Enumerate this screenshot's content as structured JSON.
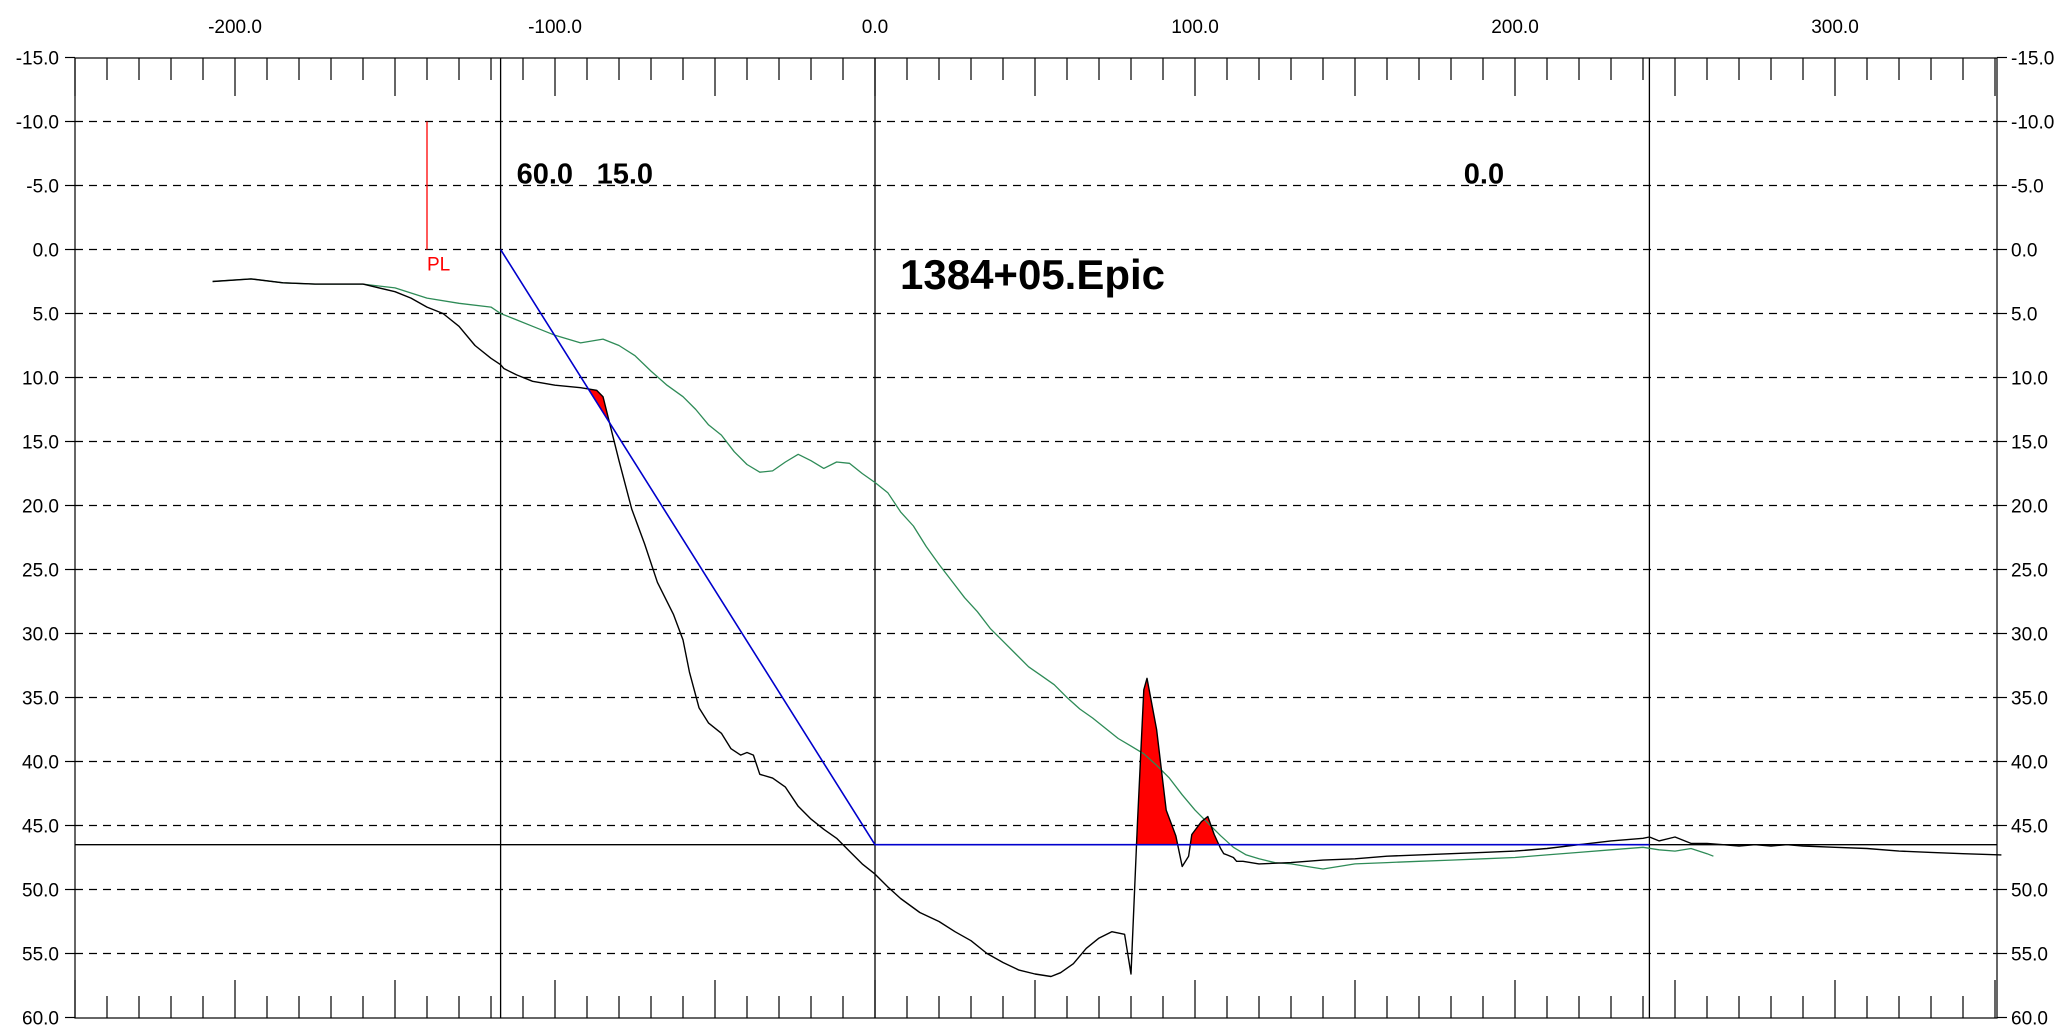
{
  "chart_data": {
    "type": "area",
    "title": "1384+05.Epic",
    "xlabel": "",
    "ylabel": "",
    "xlim": [
      -250.0,
      352.0
    ],
    "ylim": [
      60.0,
      -15.0
    ],
    "y_axis_inverted": true,
    "grid": {
      "horizontal": "dashed",
      "vertical": "none"
    },
    "x_ticks": [
      "-200.0",
      "-100.0",
      "0.0",
      "100.0",
      "200.0",
      "300.0"
    ],
    "x_tick_values": [
      -200,
      -100,
      0,
      100,
      200,
      300
    ],
    "y_ticks": [
      "-15.0",
      "-10.0",
      "-5.0",
      "0.0",
      "5.0",
      "10.0",
      "15.0",
      "20.0",
      "25.0",
      "30.0",
      "35.0",
      "40.0",
      "45.0",
      "50.0",
      "55.0",
      "60.0"
    ],
    "y_tick_values": [
      -15,
      -10,
      -5,
      0,
      5,
      10,
      15,
      20,
      25,
      30,
      35,
      40,
      45,
      50,
      55,
      60
    ],
    "vertical_lines_x": [
      -117,
      0,
      242
    ],
    "horizontal_line_y": 46.5,
    "colors": {
      "fill": "#ff0000",
      "existing_ground": "#000000",
      "secondary_ground": "#2e8b57",
      "design": "#0000cc",
      "marker": "#ff0000",
      "grid": "#000000"
    },
    "annotations": [
      {
        "text": "60.0",
        "x": -112,
        "y": -6
      },
      {
        "text": "15.0",
        "x": -87,
        "y": -6
      },
      {
        "text": "0.0",
        "x": 184,
        "y": -6
      }
    ],
    "marker": {
      "text": "PL",
      "x": -140,
      "y_top": -10,
      "y_bottom": 0
    },
    "series": [
      {
        "role": "existing_ground",
        "points": [
          [
            -207,
            2.5
          ],
          [
            -195,
            2.3
          ],
          [
            -185,
            2.6
          ],
          [
            -175,
            2.7
          ],
          [
            -160,
            2.7
          ],
          [
            -150,
            3.3
          ],
          [
            -145,
            3.8
          ],
          [
            -140,
            4.5
          ],
          [
            -135,
            5.0
          ],
          [
            -130,
            6.0
          ],
          [
            -125,
            7.5
          ],
          [
            -120,
            8.5
          ],
          [
            -117,
            9.0
          ],
          [
            -116,
            9.3
          ],
          [
            -112,
            9.8
          ],
          [
            -107,
            10.3
          ],
          [
            -100,
            10.6
          ],
          [
            -92,
            10.8
          ],
          [
            -87,
            11.0
          ],
          [
            -85,
            11.5
          ],
          [
            -83,
            13.5
          ],
          [
            -80,
            16.5
          ],
          [
            -76,
            20.3
          ],
          [
            -72,
            23.0
          ],
          [
            -68,
            26.0
          ],
          [
            -63,
            28.5
          ],
          [
            -60,
            30.5
          ],
          [
            -58,
            33.0
          ],
          [
            -55,
            35.8
          ],
          [
            -52,
            37.0
          ],
          [
            -48,
            37.8
          ],
          [
            -45,
            39.0
          ],
          [
            -42,
            39.5
          ],
          [
            -40,
            39.3
          ],
          [
            -38,
            39.5
          ],
          [
            -36,
            41.0
          ],
          [
            -32,
            41.3
          ],
          [
            -28,
            42.0
          ],
          [
            -24,
            43.5
          ],
          [
            -20,
            44.5
          ],
          [
            -16,
            45.3
          ],
          [
            -12,
            46.0
          ],
          [
            -8,
            47.0
          ],
          [
            -4,
            48.0
          ],
          [
            0,
            48.8
          ],
          [
            4,
            49.8
          ],
          [
            8,
            50.7
          ],
          [
            14,
            51.8
          ],
          [
            20,
            52.5
          ],
          [
            25,
            53.3
          ],
          [
            30,
            54.0
          ],
          [
            35,
            55.0
          ],
          [
            40,
            55.7
          ],
          [
            45,
            56.3
          ],
          [
            50,
            56.6
          ],
          [
            55,
            56.8
          ],
          [
            58,
            56.5
          ],
          [
            62,
            55.8
          ],
          [
            66,
            54.6
          ],
          [
            70,
            53.8
          ],
          [
            74,
            53.3
          ],
          [
            78,
            53.5
          ],
          [
            80,
            56.6
          ],
          [
            82,
            44.9
          ],
          [
            84,
            34.4
          ],
          [
            85,
            33.5
          ],
          [
            88,
            37.5
          ],
          [
            91,
            43.8
          ],
          [
            94,
            45.8
          ],
          [
            96,
            48.2
          ],
          [
            98,
            47.4
          ],
          [
            99,
            45.7
          ],
          [
            102,
            44.7
          ],
          [
            104,
            44.3
          ],
          [
            106,
            45.7
          ],
          [
            108,
            46.8
          ],
          [
            109,
            47.2
          ],
          [
            110,
            47.3
          ],
          [
            112,
            47.5
          ],
          [
            113,
            47.8
          ],
          [
            115,
            47.8
          ],
          [
            120,
            48.0
          ],
          [
            130,
            47.9
          ],
          [
            140,
            47.7
          ],
          [
            150,
            47.6
          ],
          [
            160,
            47.4
          ],
          [
            170,
            47.3
          ],
          [
            180,
            47.2
          ],
          [
            190,
            47.1
          ],
          [
            200,
            47.0
          ],
          [
            210,
            46.8
          ],
          [
            220,
            46.5
          ],
          [
            230,
            46.2
          ],
          [
            240,
            46.0
          ],
          [
            242,
            45.9
          ],
          [
            245,
            46.2
          ],
          [
            250,
            45.9
          ],
          [
            255,
            46.4
          ],
          [
            260,
            46.4
          ],
          [
            265,
            46.5
          ],
          [
            270,
            46.6
          ],
          [
            275,
            46.5
          ],
          [
            280,
            46.6
          ],
          [
            285,
            46.5
          ],
          [
            290,
            46.6
          ],
          [
            300,
            46.7
          ],
          [
            310,
            46.8
          ],
          [
            320,
            47.0
          ],
          [
            330,
            47.1
          ],
          [
            340,
            47.2
          ],
          [
            352,
            47.3
          ]
        ]
      },
      {
        "role": "secondary_ground",
        "points": [
          [
            -207,
            2.5
          ],
          [
            -195,
            2.3
          ],
          [
            -185,
            2.6
          ],
          [
            -175,
            2.7
          ],
          [
            -160,
            2.7
          ],
          [
            -150,
            3.0
          ],
          [
            -145,
            3.4
          ],
          [
            -140,
            3.8
          ],
          [
            -130,
            4.2
          ],
          [
            -120,
            4.5
          ],
          [
            -117,
            5.0
          ],
          [
            -112,
            5.5
          ],
          [
            -107,
            6.0
          ],
          [
            -100,
            6.7
          ],
          [
            -92,
            7.3
          ],
          [
            -85,
            7.0
          ],
          [
            -80,
            7.5
          ],
          [
            -75,
            8.3
          ],
          [
            -70,
            9.5
          ],
          [
            -65,
            10.6
          ],
          [
            -60,
            11.5
          ],
          [
            -56,
            12.5
          ],
          [
            -52,
            13.7
          ],
          [
            -48,
            14.5
          ],
          [
            -44,
            15.8
          ],
          [
            -40,
            16.8
          ],
          [
            -36,
            17.4
          ],
          [
            -32,
            17.3
          ],
          [
            -28,
            16.6
          ],
          [
            -24,
            16.0
          ],
          [
            -20,
            16.5
          ],
          [
            -16,
            17.1
          ],
          [
            -12,
            16.6
          ],
          [
            -8,
            16.7
          ],
          [
            -4,
            17.5
          ],
          [
            0,
            18.2
          ],
          [
            4,
            19.0
          ],
          [
            8,
            20.5
          ],
          [
            12,
            21.6
          ],
          [
            16,
            23.2
          ],
          [
            20,
            24.6
          ],
          [
            24,
            25.9
          ],
          [
            28,
            27.2
          ],
          [
            32,
            28.3
          ],
          [
            36,
            29.6
          ],
          [
            40,
            30.6
          ],
          [
            44,
            31.6
          ],
          [
            48,
            32.6
          ],
          [
            52,
            33.3
          ],
          [
            56,
            34.0
          ],
          [
            60,
            35.0
          ],
          [
            64,
            35.9
          ],
          [
            68,
            36.6
          ],
          [
            72,
            37.4
          ],
          [
            76,
            38.2
          ],
          [
            80,
            38.8
          ],
          [
            84,
            39.4
          ],
          [
            88,
            40.3
          ],
          [
            92,
            41.3
          ],
          [
            96,
            42.6
          ],
          [
            100,
            43.8
          ],
          [
            104,
            44.8
          ],
          [
            108,
            45.8
          ],
          [
            112,
            46.7
          ],
          [
            116,
            47.3
          ],
          [
            120,
            47.6
          ],
          [
            125,
            47.9
          ],
          [
            130,
            48.0
          ],
          [
            135,
            48.2
          ],
          [
            140,
            48.4
          ],
          [
            150,
            48.0
          ],
          [
            160,
            47.9
          ],
          [
            170,
            47.8
          ],
          [
            180,
            47.7
          ],
          [
            190,
            47.6
          ],
          [
            200,
            47.5
          ],
          [
            210,
            47.3
          ],
          [
            220,
            47.1
          ],
          [
            230,
            46.9
          ],
          [
            240,
            46.7
          ],
          [
            245,
            46.9
          ],
          [
            250,
            47.0
          ],
          [
            255,
            46.8
          ],
          [
            260,
            47.2
          ],
          [
            262,
            47.4
          ]
        ]
      },
      {
        "role": "design",
        "points": [
          [
            -117,
            0.0
          ],
          [
            0,
            46.5
          ],
          [
            242,
            46.5
          ]
        ]
      }
    ]
  }
}
